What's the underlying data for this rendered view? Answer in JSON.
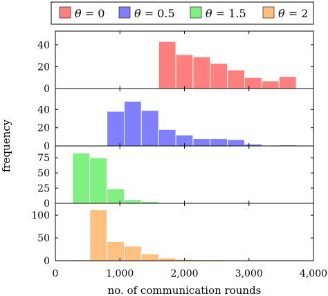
{
  "chart_data": {
    "type": "bar",
    "subtype": "stacked-histogram-panels",
    "xlabel": "no. of communication rounds",
    "ylabel": "frequency",
    "xlim": [
      0,
      4000
    ],
    "x_ticks": [
      0,
      1000,
      2000,
      3000,
      4000
    ],
    "x_tick_labels": [
      "0",
      "1,000",
      "2,000",
      "3,000",
      "4,000"
    ],
    "bin_width": 266.7,
    "grid": false,
    "legend_position": "top",
    "legend": [
      {
        "label_math": "θ",
        "label_rest": " = 0",
        "color": "#ff7f7f"
      },
      {
        "label_math": "θ",
        "label_rest": " = 0.5",
        "color": "#7f7fff"
      },
      {
        "label_math": "θ",
        "label_rest": " = 1.5",
        "color": "#80f080"
      },
      {
        "label_math": "θ",
        "label_rest": " = 2",
        "color": "#ffc080"
      }
    ],
    "panels": [
      {
        "series": "θ = 0",
        "color": "#ff7f7f",
        "stroke": "#ffffff",
        "ylim": [
          0,
          50
        ],
        "y_ticks": [
          0,
          20,
          40
        ],
        "bins": [
          {
            "x0": 1600,
            "x1": 1867,
            "value": 43
          },
          {
            "x0": 1867,
            "x1": 2133,
            "value": 31
          },
          {
            "x0": 2133,
            "x1": 2400,
            "value": 29
          },
          {
            "x0": 2400,
            "x1": 2667,
            "value": 23
          },
          {
            "x0": 2667,
            "x1": 2933,
            "value": 17
          },
          {
            "x0": 2933,
            "x1": 3200,
            "value": 10
          },
          {
            "x0": 3200,
            "x1": 3467,
            "value": 7
          },
          {
            "x0": 3467,
            "x1": 3733,
            "value": 11
          }
        ]
      },
      {
        "series": "θ = 0.5",
        "color": "#7f7fff",
        "stroke": "#ffffff",
        "ylim": [
          0,
          60
        ],
        "y_ticks": [
          0,
          20,
          40
        ],
        "bins": [
          {
            "x0": 800,
            "x1": 1067,
            "value": 38
          },
          {
            "x0": 1067,
            "x1": 1333,
            "value": 49
          },
          {
            "x0": 1333,
            "x1": 1600,
            "value": 39
          },
          {
            "x0": 1600,
            "x1": 1867,
            "value": 18
          },
          {
            "x0": 1867,
            "x1": 2133,
            "value": 12
          },
          {
            "x0": 2133,
            "x1": 2400,
            "value": 8
          },
          {
            "x0": 2400,
            "x1": 2667,
            "value": 8
          },
          {
            "x0": 2667,
            "x1": 2933,
            "value": 7
          },
          {
            "x0": 2933,
            "x1": 3200,
            "value": 2
          },
          {
            "x0": 3200,
            "x1": 3467,
            "value": 0
          },
          {
            "x0": 3467,
            "x1": 3733,
            "value": 1
          }
        ]
      },
      {
        "series": "θ = 1.5",
        "color": "#80f080",
        "stroke": "#ffffff",
        "ylim": [
          0,
          90
        ],
        "y_ticks": [
          0,
          25,
          50,
          75
        ],
        "bins": [
          {
            "x0": 267,
            "x1": 533,
            "value": 83
          },
          {
            "x0": 533,
            "x1": 800,
            "value": 75
          },
          {
            "x0": 800,
            "x1": 1067,
            "value": 24
          },
          {
            "x0": 1067,
            "x1": 1333,
            "value": 6
          },
          {
            "x0": 1333,
            "x1": 1600,
            "value": 3
          },
          {
            "x0": 1600,
            "x1": 1867,
            "value": 1
          }
        ]
      },
      {
        "series": "θ = 2",
        "color": "#ffc080",
        "stroke": "#ffffff",
        "ylim": [
          0,
          120
        ],
        "y_ticks": [
          0,
          50,
          100
        ],
        "bins": [
          {
            "x0": 267,
            "x1": 533,
            "value": 2
          },
          {
            "x0": 533,
            "x1": 800,
            "value": 112
          },
          {
            "x0": 800,
            "x1": 1067,
            "value": 42
          },
          {
            "x0": 1067,
            "x1": 1333,
            "value": 32
          },
          {
            "x0": 1333,
            "x1": 1600,
            "value": 15
          },
          {
            "x0": 1600,
            "x1": 1867,
            "value": 6
          },
          {
            "x0": 1867,
            "x1": 2133,
            "value": 3
          },
          {
            "x0": 2133,
            "x1": 2400,
            "value": 2
          },
          {
            "x0": 2400,
            "x1": 2667,
            "value": 2
          },
          {
            "x0": 2667,
            "x1": 2933,
            "value": 1
          },
          {
            "x0": 2933,
            "x1": 3200,
            "value": 1
          },
          {
            "x0": 3200,
            "x1": 3467,
            "value": 1
          },
          {
            "x0": 3467,
            "x1": 3733,
            "value": 1
          }
        ]
      }
    ]
  }
}
